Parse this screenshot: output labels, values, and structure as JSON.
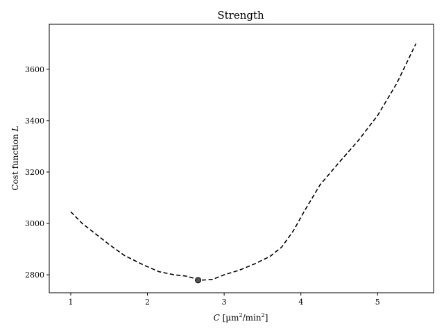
{
  "chart_data": {
    "type": "line",
    "title": "Strength",
    "xlabel_var": "C",
    "xlabel_unit_prefix": " [µm",
    "xlabel_unit_sup1": "2",
    "xlabel_unit_mid": "/min",
    "xlabel_unit_sup2": "2",
    "xlabel_unit_suffix": "]",
    "ylabel_text": "Cost function ",
    "ylabel_var": "L",
    "xlim": [
      0.72,
      5.73
    ],
    "ylim": [
      2730,
      3775
    ],
    "xticks": [
      1,
      2,
      3,
      4,
      5
    ],
    "xtick_labels": [
      "1",
      "2",
      "3",
      "4",
      "5"
    ],
    "yticks": [
      2800,
      3000,
      3200,
      3400,
      3600
    ],
    "ytick_labels": [
      "2800",
      "3000",
      "3200",
      "3400",
      "3600"
    ],
    "grid": false,
    "series": [
      {
        "line_style": "dashed",
        "color": "#000000",
        "x": [
          1.0,
          1.15,
          1.3,
          1.5,
          1.7,
          1.95,
          2.15,
          2.35,
          2.5,
          2.6,
          2.66,
          2.75,
          2.85,
          3.0,
          3.2,
          3.4,
          3.6,
          3.75,
          3.9,
          4.05,
          4.25,
          4.5,
          4.75,
          5.0,
          5.25,
          5.5
        ],
        "y": [
          3045,
          3000,
          2965,
          2918,
          2875,
          2838,
          2812,
          2800,
          2795,
          2787,
          2779,
          2780,
          2782,
          2800,
          2818,
          2843,
          2872,
          2908,
          2970,
          3050,
          3150,
          3238,
          3323,
          3420,
          3545,
          3700
        ]
      }
    ],
    "highlight_point": {
      "x": 2.66,
      "y": 2779,
      "color": "#555555"
    }
  }
}
